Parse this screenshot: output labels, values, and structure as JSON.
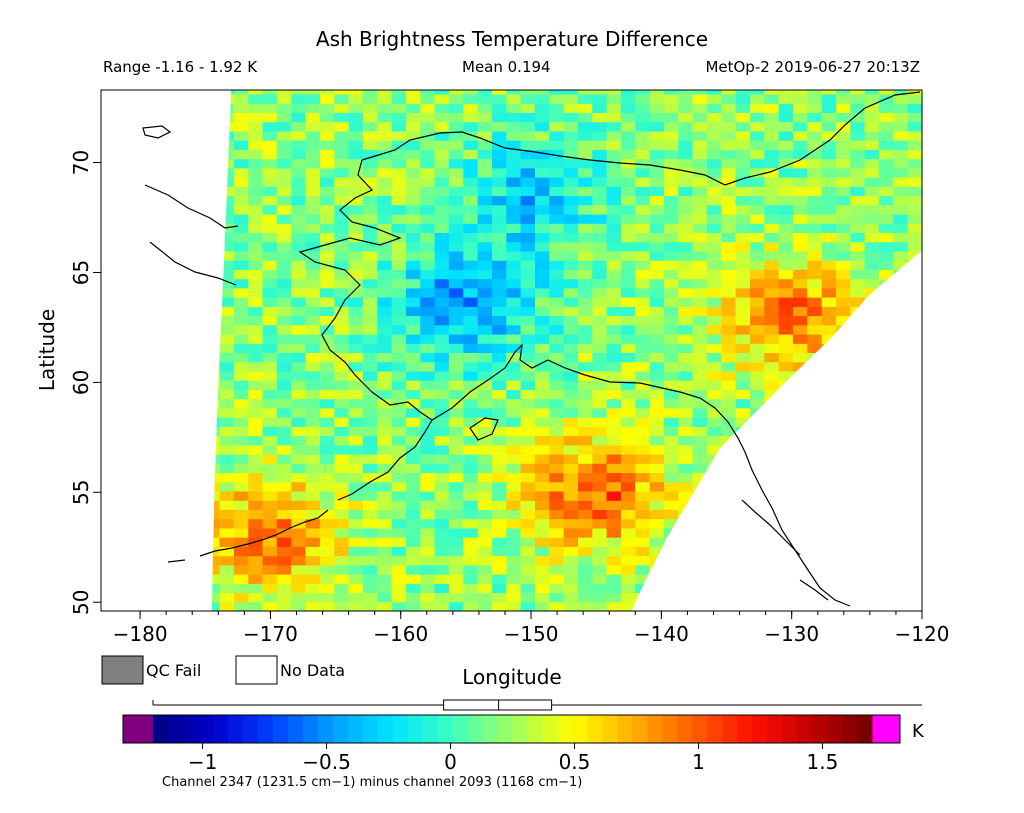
{
  "chart_data": {
    "type": "heatmap",
    "title": "Ash Brightness Temperature Difference",
    "header": {
      "range": "Range -1.16 - 1.92 K",
      "mean": "Mean 0.194",
      "source": "MetOp-2 2019-06-27 20:13Z"
    },
    "xlabel": "Longitude",
    "ylabel": "Latitude",
    "xlim": [
      -183,
      -120
    ],
    "ylim": [
      49.6,
      73.3
    ],
    "x_ticks": [
      -180,
      -170,
      -160,
      -150,
      -140,
      -130,
      -120
    ],
    "y_ticks": [
      50,
      55,
      60,
      65,
      70
    ],
    "x_tick_labels": [
      "−180",
      "−170",
      "−160",
      "−150",
      "−140",
      "−130",
      "−120"
    ],
    "y_tick_labels": [
      "50",
      "55",
      "60",
      "65",
      "70"
    ],
    "swath_edge_lon": [
      [
        73.3,
        -173.0
      ],
      [
        65.0,
        -173.6
      ],
      [
        60.0,
        -174.0
      ],
      [
        55.0,
        -174.3
      ],
      [
        49.6,
        -174.5
      ]
    ],
    "swath_right_edge_lat_lon": [
      [
        73.3,
        -120.0
      ],
      [
        66.0,
        -120.0
      ],
      [
        64.0,
        -124.0
      ],
      [
        62.0,
        -127.0
      ],
      [
        60.0,
        -130.5
      ],
      [
        58.5,
        -133.0
      ],
      [
        57.0,
        -135.5
      ],
      [
        55.0,
        -137.5
      ],
      [
        53.0,
        -139.5
      ],
      [
        51.0,
        -141.2
      ],
      [
        49.6,
        -142.3
      ]
    ],
    "field_features": [
      {
        "name": "negative anomaly core (interior Alaska)",
        "lon": -155,
        "lat": 63.5,
        "value": -0.5
      },
      {
        "name": "secondary negative patch",
        "lon": -150,
        "lat": 68.5,
        "value": -0.3
      },
      {
        "name": "positive band (Gulf of Alaska)",
        "lon": -145,
        "lat": 55.0,
        "value": 1.0
      },
      {
        "name": "positive streaks (Aleutians)",
        "lon": -170,
        "lat": 53.0,
        "value": 0.9
      },
      {
        "name": "positive patch (northwest Canada)",
        "lon": -130,
        "lat": 63.0,
        "value": 0.9
      },
      {
        "name": "background",
        "lon": -160,
        "lat": 58.0,
        "value": 0.2
      }
    ],
    "colorbar": {
      "min": -1.2,
      "max": 1.7,
      "ticks": [
        -1,
        -0.5,
        0,
        0.5,
        1,
        1.5
      ],
      "tick_labels": [
        "−1",
        "−0.5",
        "0",
        "0.5",
        "1",
        "1.5"
      ],
      "unit": "K",
      "under_color": "#800080",
      "over_color": "#ff00ff",
      "colors": [
        "#000080",
        "#0000cd",
        "#0040ff",
        "#00a0ff",
        "#00e5ff",
        "#40ffbf",
        "#a0ff60",
        "#ffff00",
        "#ffb000",
        "#ff6000",
        "#ff1000",
        "#c00000",
        "#700000"
      ],
      "caption": "Channel 2347 (1231.5 cm−1) minus channel 2093 (1168 cm−1)",
      "mean_value": 0.194
    },
    "legend": [
      {
        "label": "QC Fail",
        "color": "#808080"
      },
      {
        "label": "No Data",
        "color": "#ffffff"
      }
    ],
    "grid": false
  }
}
